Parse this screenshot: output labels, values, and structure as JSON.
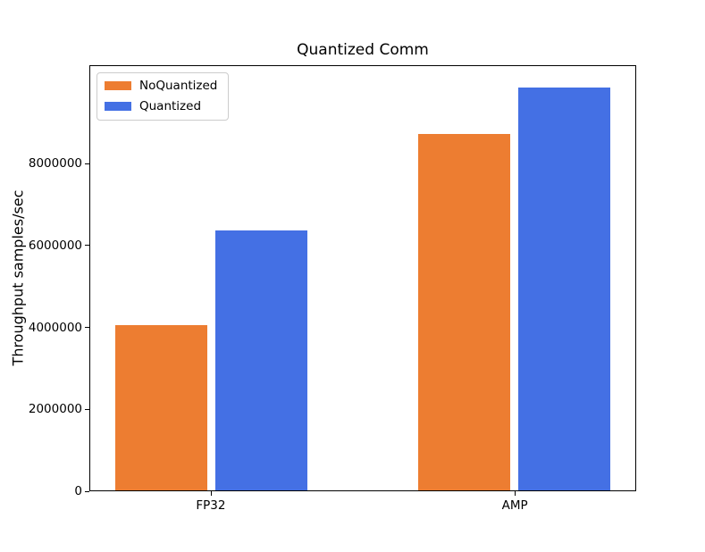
{
  "chart_data": {
    "type": "bar",
    "title": "Quantized Comm",
    "xlabel": "",
    "ylabel": "Throughput samples/sec",
    "categories": [
      "FP32",
      "AMP"
    ],
    "series": [
      {
        "name": "NoQuantized",
        "color": "#ed7d31",
        "values": [
          4050000,
          8730000
        ]
      },
      {
        "name": "Quantized",
        "color": "#4470e4",
        "values": [
          6380000,
          9870000
        ]
      }
    ],
    "ylim": [
      0,
      10400000
    ],
    "yticks": [
      0,
      2000000,
      4000000,
      6000000,
      8000000
    ],
    "ytick_labels": [
      "0",
      "2000000",
      "4000000",
      "6000000",
      "8000000"
    ],
    "grid": false,
    "legend": {
      "position": "upper-left",
      "entries": [
        "NoQuantized",
        "Quantized"
      ]
    }
  }
}
